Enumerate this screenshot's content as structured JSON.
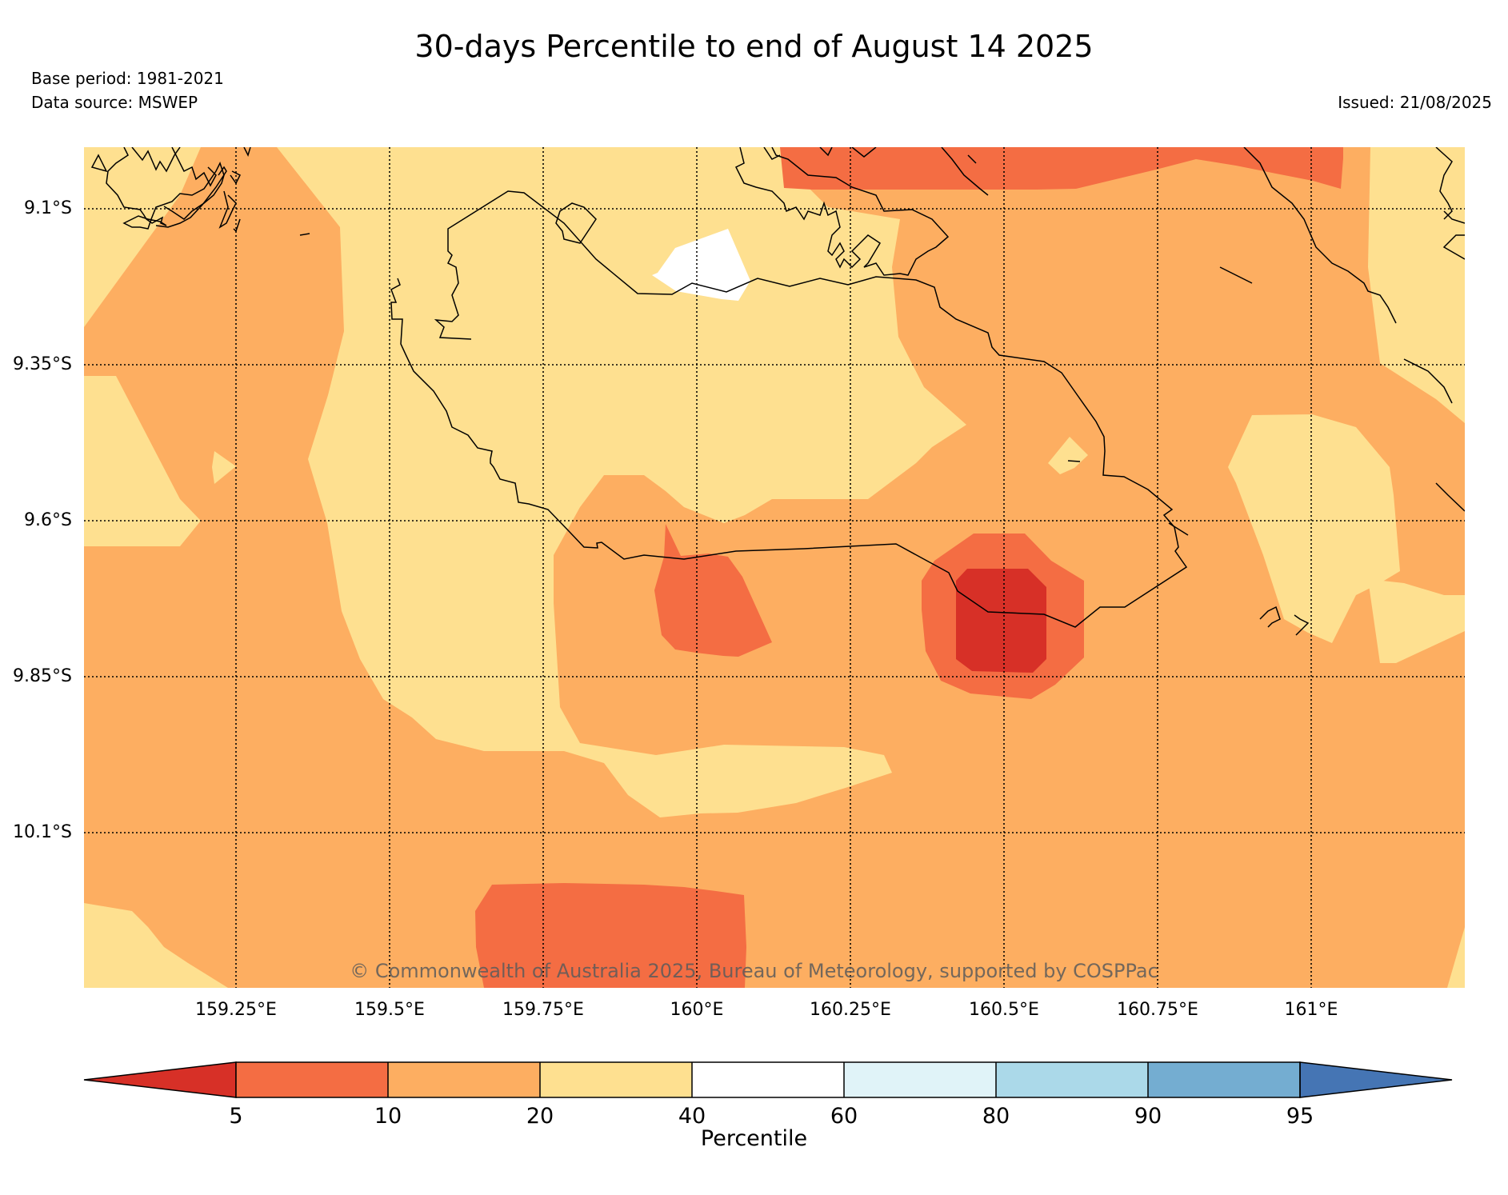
{
  "title": "30-days Percentile to end of August 14 2025",
  "base_period": "Base period: 1981-2021",
  "data_source": "Data source: MSWEP",
  "issued": "Issued: 21/08/2025",
  "copyright": "© Commonwealth of Australia 2025, Bureau of Meteorology, supported by COSPPac",
  "lat_ticks": [
    "9.1°S",
    "9.35°S",
    "9.6°S",
    "9.85°S",
    "10.1°S"
  ],
  "lon_ticks": [
    "159.25°E",
    "159.5°E",
    "159.75°E",
    "160°E",
    "160.25°E",
    "160.5°E",
    "160.75°E",
    "161°E"
  ],
  "colorbar": {
    "label": "Percentile",
    "ticks": [
      "5",
      "10",
      "20",
      "40",
      "60",
      "80",
      "90",
      "95"
    ],
    "colors": {
      "below_5": "#d73027",
      "5_10": "#f46d43",
      "10_20": "#fdae61",
      "20_40": "#fee090",
      "40_60": "#ffffff",
      "60_80": "#e0f3f8",
      "80_90": "#abd9e9",
      "90_95": "#74add1",
      "above_95": "#4575b4"
    }
  }
}
